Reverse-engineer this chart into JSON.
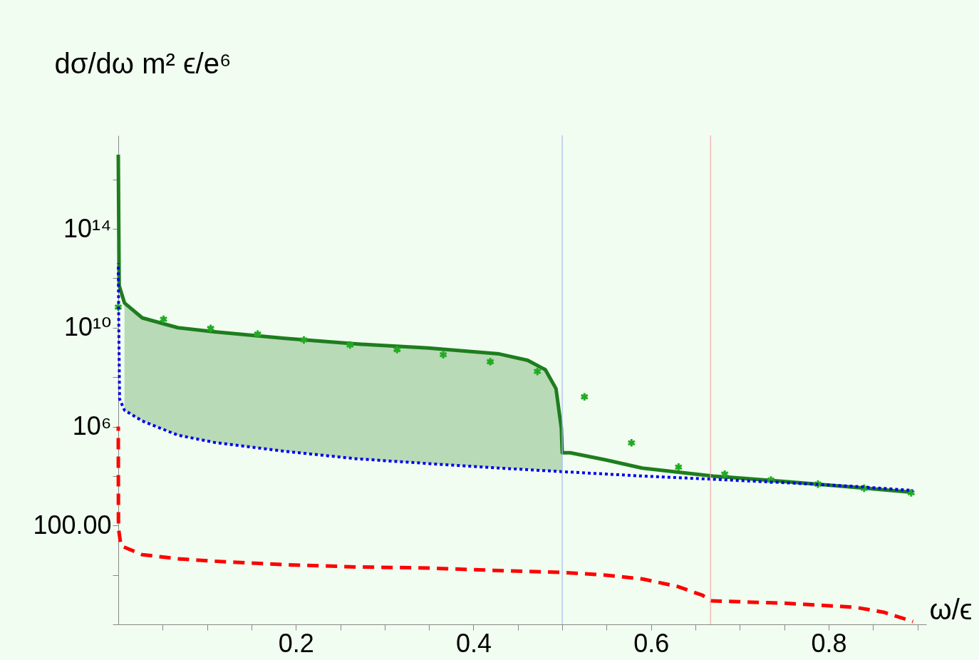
{
  "chart_data": {
    "type": "line",
    "ylabel": "dσ/dω m² ϵ/e⁶",
    "xlabel": "ω/ϵ",
    "log": true,
    "grid": false,
    "xlim": [
      0,
      0.91
    ],
    "xticks": [
      {
        "value": 0.05,
        "label": null
      },
      {
        "value": 0.1,
        "label": null
      },
      {
        "value": 0.15,
        "label": null
      },
      0.2,
      {
        "value": 0.25,
        "label": null
      },
      {
        "value": 0.3,
        "label": null
      },
      {
        "value": 0.35,
        "label": null
      },
      0.4,
      {
        "value": 0.45,
        "label": null
      },
      {
        "value": 0.5,
        "label": null
      },
      {
        "value": 0.55,
        "label": null
      },
      0.6,
      {
        "value": 0.65,
        "label": null
      },
      {
        "value": 0.7,
        "label": null
      },
      {
        "value": 0.75,
        "label": null
      },
      0.8,
      {
        "value": 0.85,
        "label": null
      },
      {
        "value": 0.9,
        "label": null
      }
    ],
    "ylim": [
      0.01,
      6e+17
    ],
    "yticks": [
      {
        "value": 0.01,
        "label": null
      },
      {
        "value": 1,
        "label": null
      },
      {
        "value": 100,
        "label": "100.00"
      },
      {
        "value": 10000,
        "label": null
      },
      {
        "value": 1000000,
        "label": "10⁶"
      },
      {
        "value": 100000000,
        "label": null
      },
      {
        "value": 10000000000,
        "label": "10¹⁰"
      },
      {
        "value": 1000000000000,
        "label": null
      },
      {
        "value": 100000000000000,
        "label": "10¹⁴"
      },
      {
        "value": 10000000000000000,
        "label": null
      }
    ],
    "ref_lines": [
      {
        "axis": "x",
        "value": 0.5,
        "color": "#a8b8f0"
      },
      {
        "axis": "x",
        "value": 0.667,
        "color": "#f4a8a8"
      }
    ],
    "series": [
      {
        "color": "#0000ee",
        "line_style": "dotted",
        "x": [
          0,
          0.0005,
          0.0015,
          0.007,
          0.027,
          0.067,
          0.108,
          0.188,
          0.268,
          0.349,
          0.429,
          0.501,
          0.59,
          0.67,
          0.75,
          0.83,
          0.895
        ],
        "values": [
          4000000000000.0,
          20000000000.0,
          13000000.0,
          4600000.0,
          1700000.0,
          450000.0,
          230000.0,
          100000.0,
          50000.0,
          32000.0,
          21000.0,
          15000.0,
          10000.0,
          7400.0,
          5400.0,
          3800.0,
          2600.0
        ]
      },
      {
        "color": "#ff0000",
        "line_style": "dashed",
        "x": [
          0,
          0.0002,
          0.003,
          0.027,
          0.067,
          0.108,
          0.188,
          0.268,
          0.349,
          0.429,
          0.501,
          0.549,
          0.59,
          0.63,
          0.658,
          0.668,
          0.75,
          0.83,
          0.862,
          0.895
        ],
        "values": [
          1000000.0,
          80,
          15,
          6.6,
          4.5,
          3.6,
          2.6,
          2.1,
          1.9,
          1.5,
          1.26,
          0.98,
          0.69,
          0.34,
          0.15,
          0.089,
          0.072,
          0.049,
          0.031,
          0.013
        ]
      },
      {
        "color": "#1e7d1e",
        "line_style": "solid",
        "x": [
          0,
          0.001,
          0.007,
          0.027,
          0.067,
          0.108,
          0.188,
          0.268,
          0.349,
          0.429,
          0.461,
          0.481,
          0.493,
          0.499,
          0.5,
          0.509,
          0.549,
          0.59,
          0.67,
          0.75,
          0.83,
          0.895
        ],
        "values": [
          1e+17,
          500000000000.0,
          100000000000.0,
          25000000000.0,
          10000000000.0,
          6800000000.0,
          3700000000.0,
          2200000000.0,
          1500000000.0,
          870000000.0,
          480000000.0,
          200000000.0,
          34000000.0,
          870000.0,
          87000.0,
          87000.0,
          45000.0,
          21000.0,
          10000.0,
          6000.0,
          3500.0,
          2200.0
        ],
        "lower": [
          null,
          null,
          4600000.0,
          1700000.0,
          450000.0,
          230000.0,
          100000.0,
          50000.0,
          32000.0,
          21000.0,
          19000.0,
          17000.0,
          16000.0,
          15000.0,
          15000.0,
          null,
          null,
          null,
          null,
          null,
          null,
          null
        ],
        "upper": [
          null,
          null,
          100000000000.0,
          25000000000.0,
          10000000000.0,
          6800000000.0,
          3700000000.0,
          2200000000.0,
          1500000000.0,
          870000000.0,
          480000000.0,
          200000000.0,
          34000000.0,
          870000.0,
          87000.0,
          null,
          null,
          null,
          null,
          null,
          null,
          null
        ]
      },
      {
        "type": "scatter",
        "color": "#22aa22",
        "marker": "cross",
        "x": [
          0,
          0.051,
          0.104,
          0.157,
          0.209,
          0.261,
          0.314,
          0.366,
          0.419,
          0.472,
          0.525,
          0.578,
          0.631,
          0.683,
          0.735,
          0.788,
          0.84,
          0.893
        ],
        "values": [
          68000000000.0,
          22000000000.0,
          9400000000.0,
          5500000000.0,
          3200000000.0,
          2000000000.0,
          1300000000.0,
          810000000.0,
          420000000.0,
          170000000.0,
          16000000.0,
          220000.0,
          23000.0,
          12000.0,
          6900.0,
          4700.0,
          3200.0,
          2100.0
        ]
      }
    ]
  }
}
